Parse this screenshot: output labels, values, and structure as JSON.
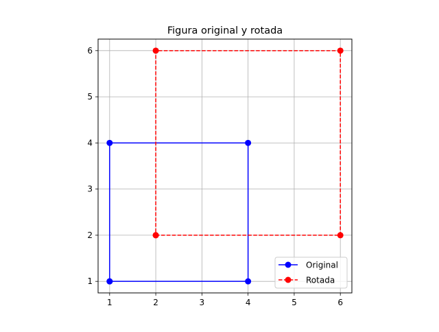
{
  "chart_data": {
    "type": "line",
    "title": "Figura original y rotada",
    "xlabel": "",
    "ylabel": "",
    "xlim": [
      0.75,
      6.25
    ],
    "ylim": [
      0.75,
      6.25
    ],
    "xticks": [
      1,
      2,
      3,
      4,
      5,
      6
    ],
    "yticks": [
      1,
      2,
      3,
      4,
      5,
      6
    ],
    "grid": true,
    "legend_position": "lower-right",
    "series": [
      {
        "name": "Original",
        "color": "#0000ff",
        "linestyle": "solid",
        "marker": "circle",
        "points": [
          [
            1,
            1
          ],
          [
            4,
            1
          ],
          [
            4,
            4
          ],
          [
            1,
            4
          ],
          [
            1,
            1
          ]
        ]
      },
      {
        "name": "Rotada",
        "color": "#ff0000",
        "linestyle": "dashed",
        "marker": "circle",
        "points": [
          [
            2,
            2
          ],
          [
            6,
            2
          ],
          [
            6,
            6
          ],
          [
            2,
            6
          ],
          [
            2,
            2
          ]
        ]
      }
    ]
  }
}
